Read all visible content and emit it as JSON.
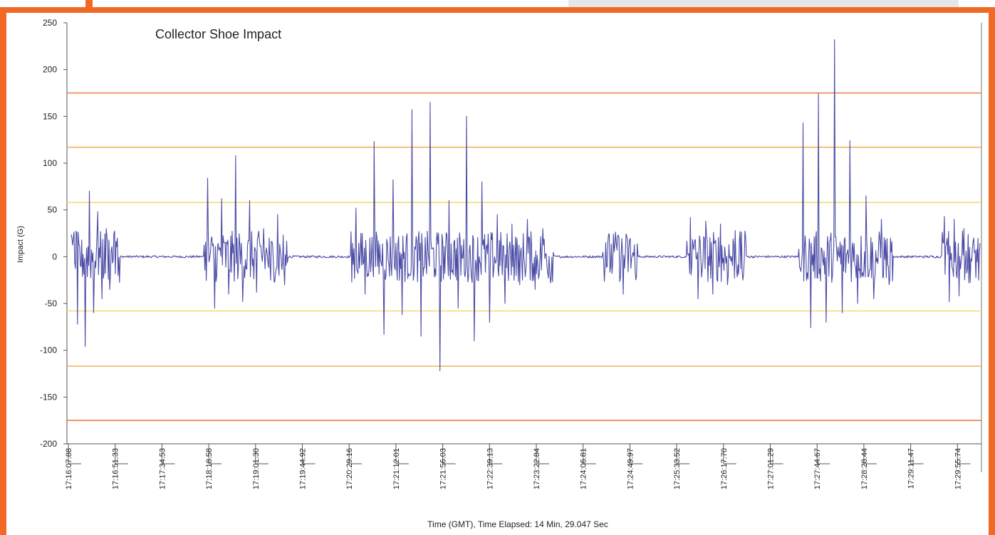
{
  "chart_data": {
    "type": "line",
    "title": "Collector Shoe Impact",
    "xlabel": "Time (GMT), Time Elapsed: 14 Min, 29.047 Sec",
    "ylabel": "Impact (G)",
    "ylim": [
      -200,
      250
    ],
    "y_ticks": [
      250,
      200,
      150,
      100,
      50,
      0,
      -50,
      -100,
      -150,
      -200
    ],
    "x_tick_labels": [
      "17:16:07.88",
      "17:16:51.33",
      "17:17:34.53",
      "17:18:18.58",
      "17:19:01.30",
      "17:19:44.92",
      "17:20:29.16",
      "17:21:12.01",
      "17:21:56.03",
      "17:22:39.13",
      "17:23:22.84",
      "17:24:06.81",
      "17:24:49.97",
      "17:25:33.52",
      "17:26:17.70",
      "17:27:01.29",
      "17:27:44.67",
      "17:28:28.44",
      "17:29:11.47",
      "17:29:55.74"
    ],
    "grid": false,
    "legend": "none",
    "threshold_lines": [
      {
        "value": 175,
        "color": "#f07a45"
      },
      {
        "value": 117,
        "color": "#f5b05a"
      },
      {
        "value": 58,
        "color": "#f4dc72"
      },
      {
        "value": -58,
        "color": "#f4dc72"
      },
      {
        "value": -117,
        "color": "#f5b05a"
      },
      {
        "value": -175,
        "color": "#f07a45"
      }
    ],
    "series": [
      {
        "color": "#4b4ba6",
        "bursts": [
          {
            "start": 0,
            "end": 70,
            "peaks": [
              20,
              -72,
              18,
              -96,
              70,
              -60,
              48,
              -45,
              30,
              -35,
              25,
              -20
            ]
          },
          {
            "start": 190,
            "end": 310,
            "peaks": [
              84,
              -55,
              62,
              -40,
              108,
              -48,
              60,
              -38,
              30,
              -25,
              45,
              -30
            ]
          },
          {
            "start": 400,
            "end": 560,
            "peaks": [
              52,
              -40,
              123,
              -83,
              82,
              -62,
              157,
              -85,
              165,
              -122,
              60,
              -55
            ]
          },
          {
            "start": 560,
            "end": 690,
            "peaks": [
              150,
              -90,
              80,
              -70,
              45,
              -50,
              35,
              -30,
              40,
              -35,
              30,
              -28
            ]
          },
          {
            "start": 760,
            "end": 810,
            "peaks": [
              15,
              -18,
              22,
              -40,
              18,
              -15
            ]
          },
          {
            "start": 880,
            "end": 965,
            "peaks": [
              42,
              -45,
              38,
              -40,
              35,
              -30,
              28,
              -25
            ]
          },
          {
            "start": 1040,
            "end": 1175,
            "peaks": [
              143,
              -76,
              174,
              -70,
              232,
              -60,
              124,
              -50,
              65,
              -45,
              40,
              -30
            ]
          },
          {
            "start": 1245,
            "end": 1300,
            "peaks": [
              43,
              -48,
              40,
              -42,
              30,
              -28,
              20,
              -25
            ]
          }
        ]
      }
    ]
  }
}
